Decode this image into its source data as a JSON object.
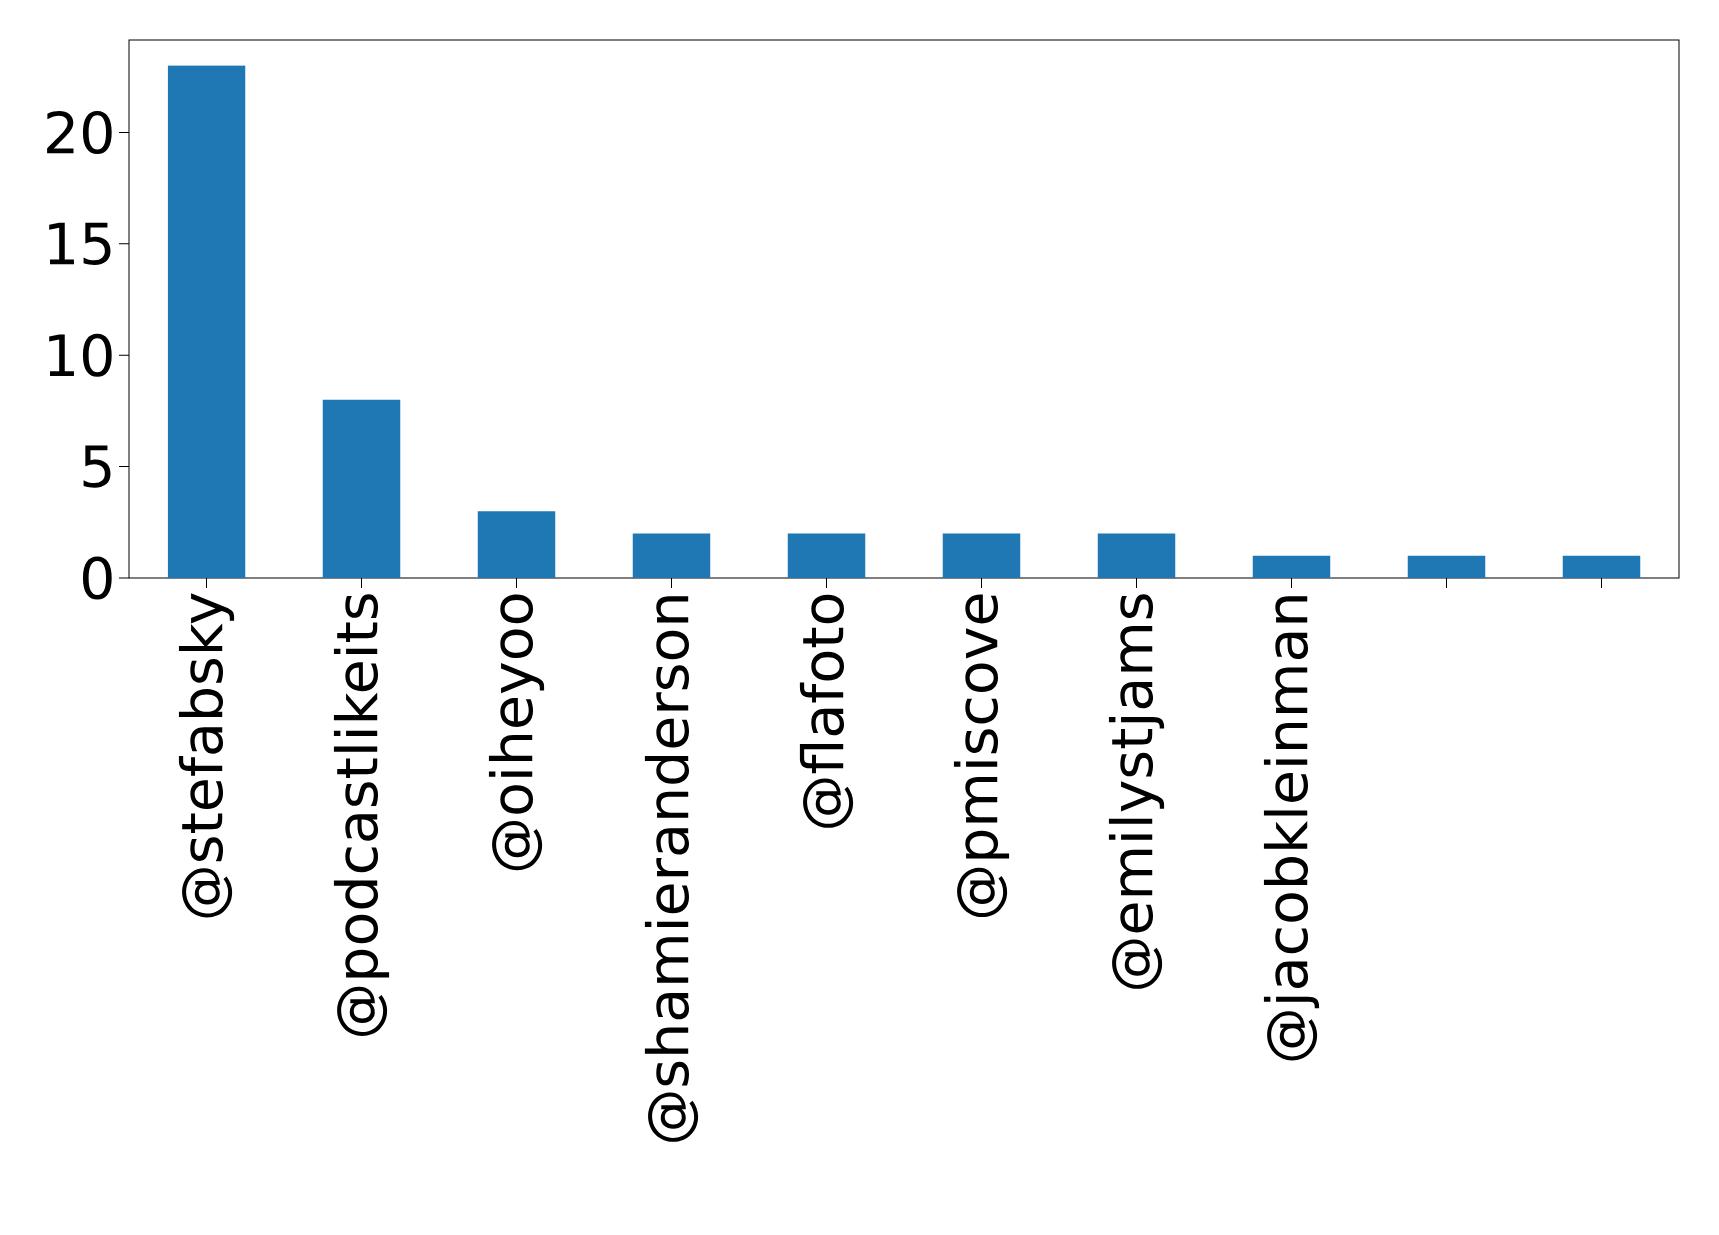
{
  "chart_data": {
    "type": "bar",
    "categories": [
      "@stefabsky",
      "@podcastlikeits",
      "@oiheyoo",
      "@shamieranderson",
      "@flafoto",
      "@pmiscove",
      "@emilystjams",
      "@jacobkleinman",
      null,
      null
    ],
    "values": [
      23,
      8,
      3,
      2,
      2,
      2,
      2,
      1,
      1,
      1
    ],
    "color": "#1f77b4",
    "ylim": [
      0,
      24.15
    ],
    "yticks": [
      0,
      5,
      10,
      15,
      20
    ]
  }
}
